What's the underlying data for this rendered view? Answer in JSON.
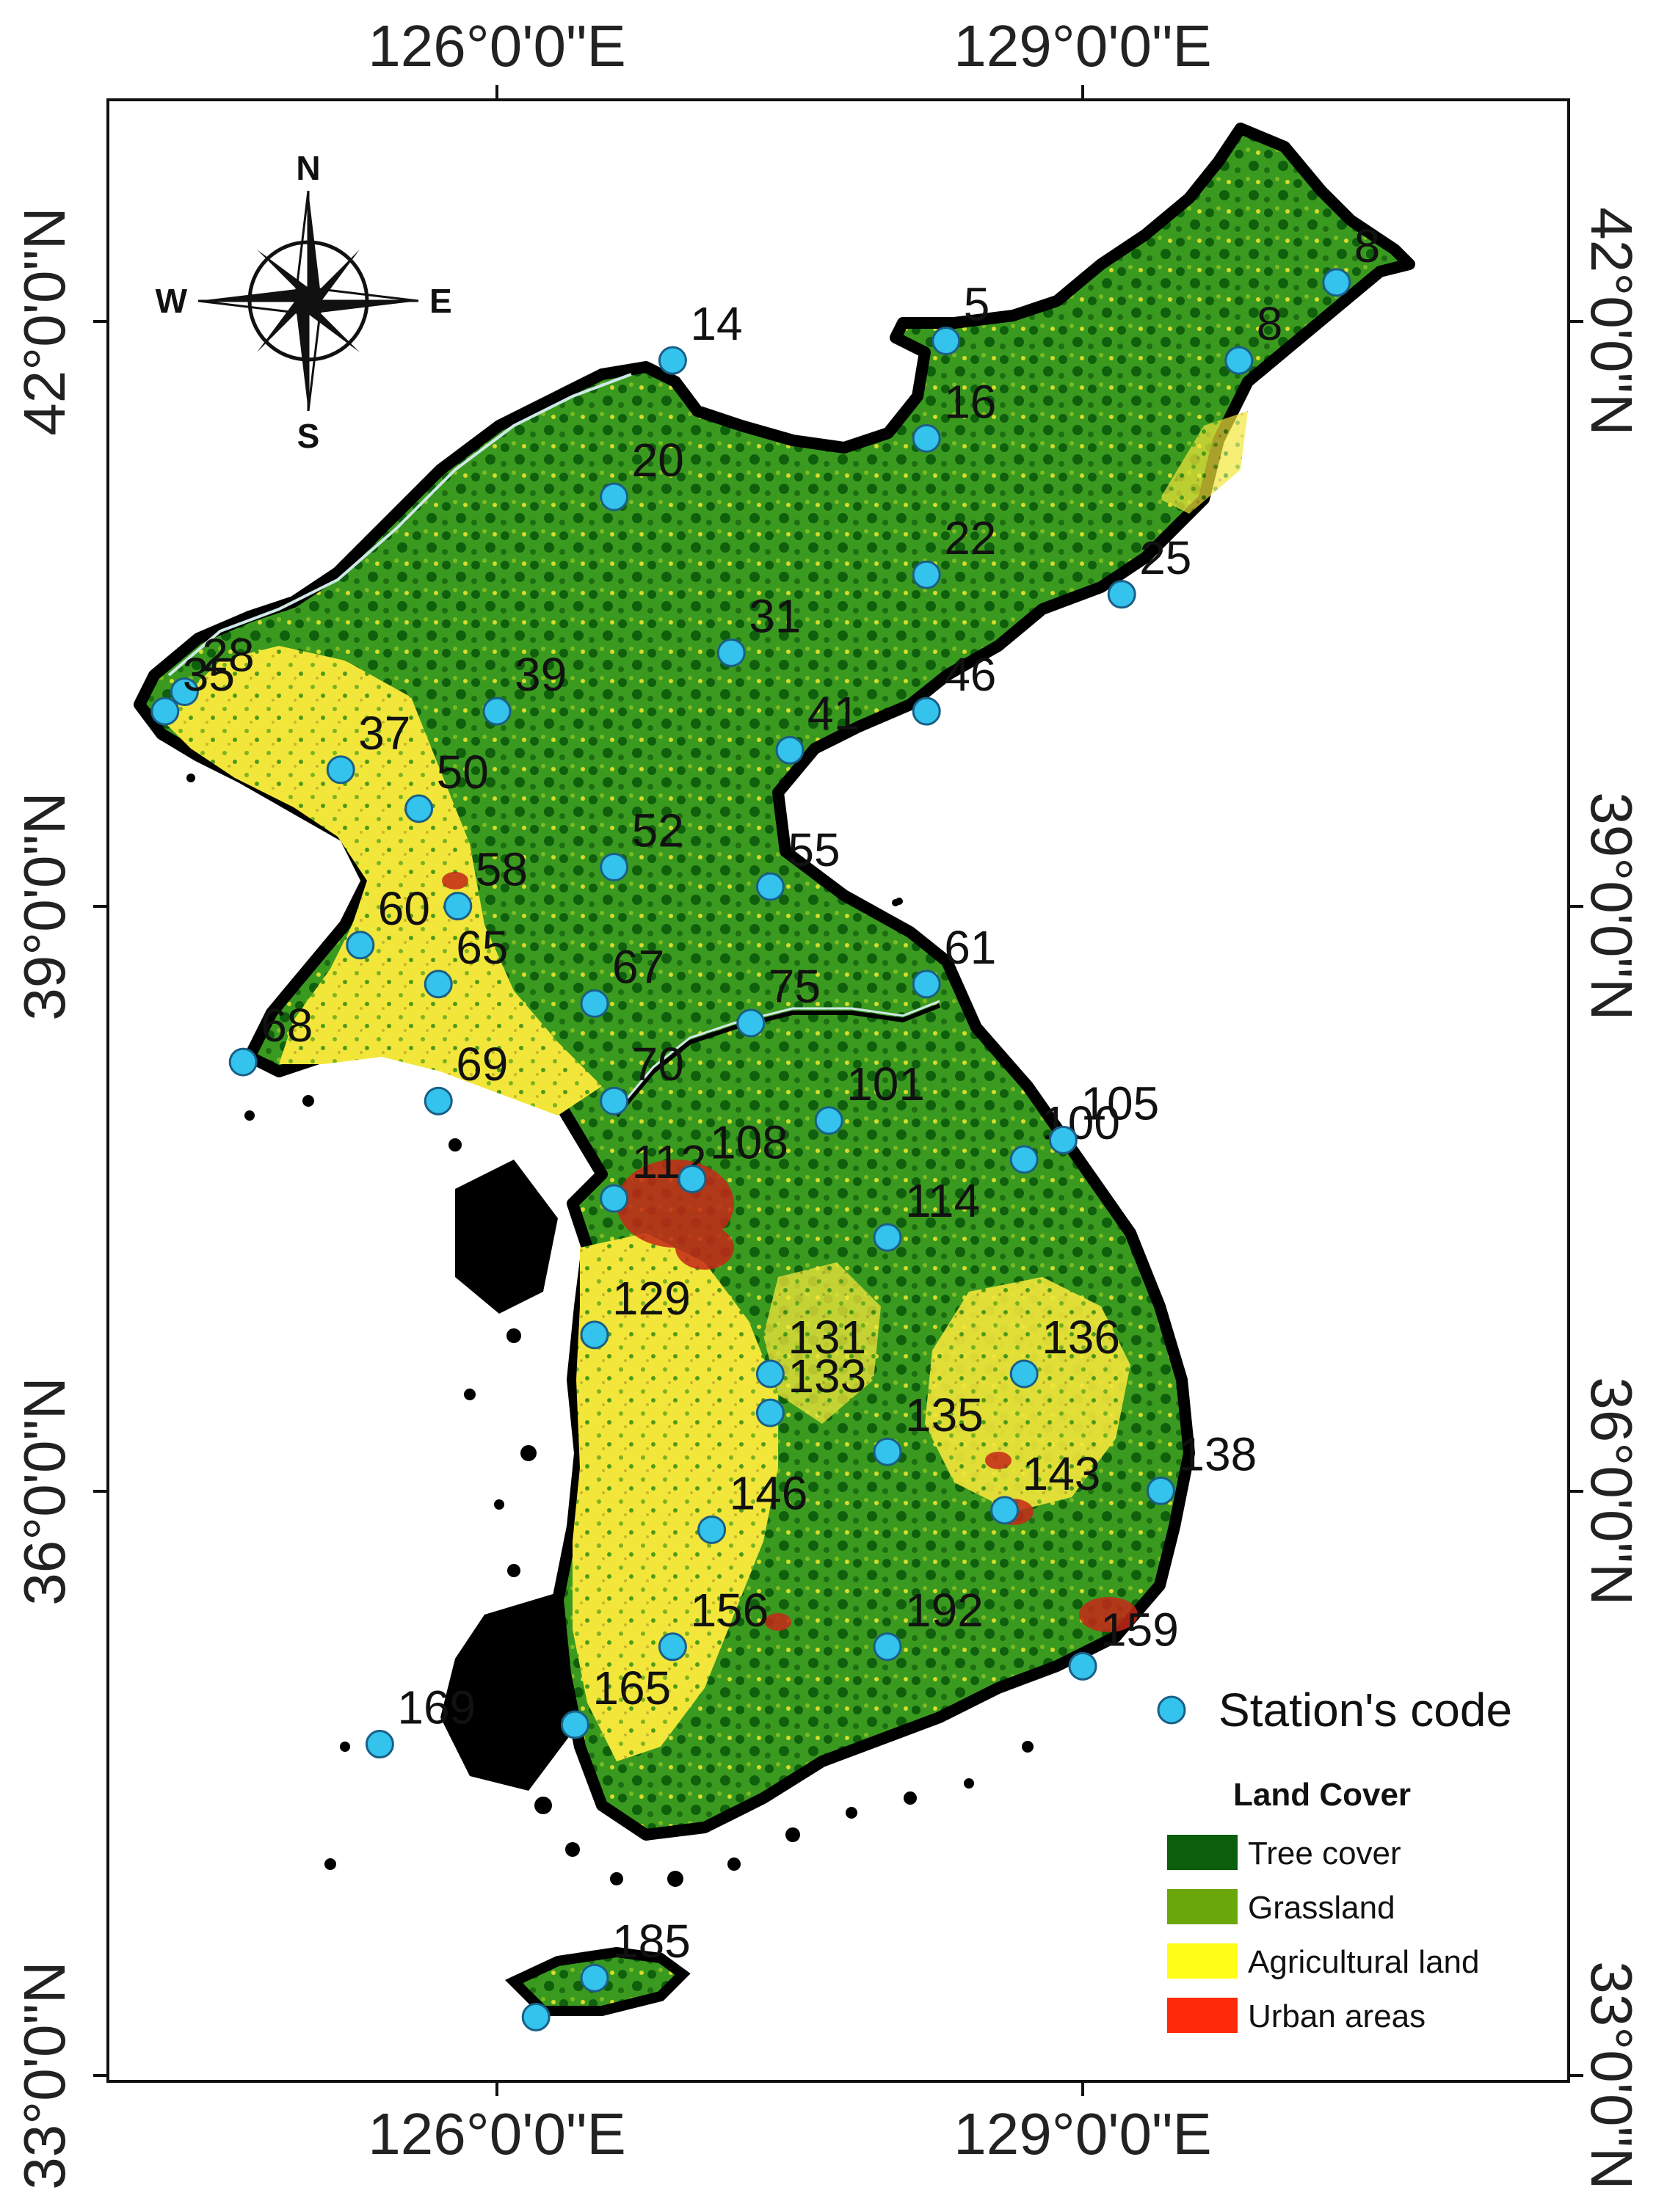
{
  "axes": {
    "top": [
      "126°0'0\"E",
      "129°0'0\"E"
    ],
    "bottom": [
      "126°0'0\"E",
      "129°0'0\"E"
    ],
    "left": [
      "42°0'0\"N",
      "39°0'0\"N",
      "36°0'0\"N",
      "33°0'0\"N"
    ],
    "right": [
      "42°0'0\"N",
      "39°0'0\"N",
      "36°0'0\"N",
      "33°0'0\"N"
    ]
  },
  "compass": {
    "n": "N",
    "s": "S",
    "e": "E",
    "w": "W"
  },
  "stations": [
    {
      "code": "8",
      "lon": 130.3,
      "lat": 42.2
    },
    {
      "code": "8",
      "lon": 129.8,
      "lat": 41.8
    },
    {
      "code": "5",
      "lon": 128.3,
      "lat": 41.9
    },
    {
      "code": "14",
      "lon": 126.9,
      "lat": 41.8
    },
    {
      "code": "16",
      "lon": 128.2,
      "lat": 41.4
    },
    {
      "code": "20",
      "lon": 126.6,
      "lat": 41.1
    },
    {
      "code": "22",
      "lon": 128.2,
      "lat": 40.7
    },
    {
      "code": "25",
      "lon": 129.2,
      "lat": 40.6
    },
    {
      "code": "28",
      "lon": 124.4,
      "lat": 40.1
    },
    {
      "code": "31",
      "lon": 127.2,
      "lat": 40.3
    },
    {
      "code": "35",
      "lon": 124.3,
      "lat": 40.0
    },
    {
      "code": "37",
      "lon": 125.2,
      "lat": 39.7
    },
    {
      "code": "39",
      "lon": 126.0,
      "lat": 40.0
    },
    {
      "code": "41",
      "lon": 127.5,
      "lat": 39.8
    },
    {
      "code": "46",
      "lon": 128.2,
      "lat": 40.0
    },
    {
      "code": "50",
      "lon": 125.6,
      "lat": 39.5
    },
    {
      "code": "52",
      "lon": 126.6,
      "lat": 39.2
    },
    {
      "code": "55",
      "lon": 127.4,
      "lat": 39.1
    },
    {
      "code": "58",
      "lon": 125.8,
      "lat": 39.0
    },
    {
      "code": "60",
      "lon": 125.3,
      "lat": 38.8
    },
    {
      "code": "61",
      "lon": 128.2,
      "lat": 38.6
    },
    {
      "code": "65",
      "lon": 125.7,
      "lat": 38.6
    },
    {
      "code": "67",
      "lon": 126.5,
      "lat": 38.5
    },
    {
      "code": "68",
      "lon": 124.7,
      "lat": 38.2
    },
    {
      "code": "69",
      "lon": 125.7,
      "lat": 38.0
    },
    {
      "code": "70",
      "lon": 126.6,
      "lat": 38.0
    },
    {
      "code": "75",
      "lon": 127.3,
      "lat": 38.4
    },
    {
      "code": "101",
      "lon": 127.7,
      "lat": 37.9
    },
    {
      "code": "100",
      "lon": 128.7,
      "lat": 37.7
    },
    {
      "code": "105",
      "lon": 128.9,
      "lat": 37.8
    },
    {
      "code": "112",
      "lon": 126.6,
      "lat": 37.5
    },
    {
      "code": "108",
      "lon": 127.0,
      "lat": 37.6
    },
    {
      "code": "114",
      "lon": 128.0,
      "lat": 37.3
    },
    {
      "code": "129",
      "lon": 126.5,
      "lat": 36.8
    },
    {
      "code": "131",
      "lon": 127.4,
      "lat": 36.6
    },
    {
      "code": "133",
      "lon": 127.4,
      "lat": 36.4
    },
    {
      "code": "135",
      "lon": 128.0,
      "lat": 36.2
    },
    {
      "code": "136",
      "lon": 128.7,
      "lat": 36.6
    },
    {
      "code": "138",
      "lon": 129.4,
      "lat": 36.0
    },
    {
      "code": "143",
      "lon": 128.6,
      "lat": 35.9
    },
    {
      "code": "146",
      "lon": 127.1,
      "lat": 35.8
    },
    {
      "code": "156",
      "lon": 126.9,
      "lat": 35.2
    },
    {
      "code": "192",
      "lon": 128.0,
      "lat": 35.2
    },
    {
      "code": "159",
      "lon": 129.0,
      "lat": 35.1
    },
    {
      "code": "165",
      "lon": 126.4,
      "lat": 34.8
    },
    {
      "code": "169",
      "lon": 125.4,
      "lat": 34.7
    },
    {
      "code": "185",
      "lon": 126.5,
      "lat": 33.5
    },
    {
      "code": "",
      "lon": 126.2,
      "lat": 33.3
    }
  ],
  "legend": {
    "station_label": "Station's code",
    "land_cover_title": "Land Cover",
    "classes": [
      {
        "label": "Tree cover",
        "color": "#0b5e0b"
      },
      {
        "label": "Grassland",
        "color": "#6aa70a"
      },
      {
        "label": "Agricultural land",
        "color": "#ffff1a"
      },
      {
        "label": "Urban areas",
        "color": "#ff2a0a"
      }
    ]
  },
  "colors": {
    "station_fill": "#33c3ec",
    "land_base": "#2f8f1c",
    "tree": "#0b5e0b",
    "agri": "#f0e63a",
    "urban": "#c42818",
    "coast": "#000000",
    "border_line": "#cfe8e8"
  }
}
